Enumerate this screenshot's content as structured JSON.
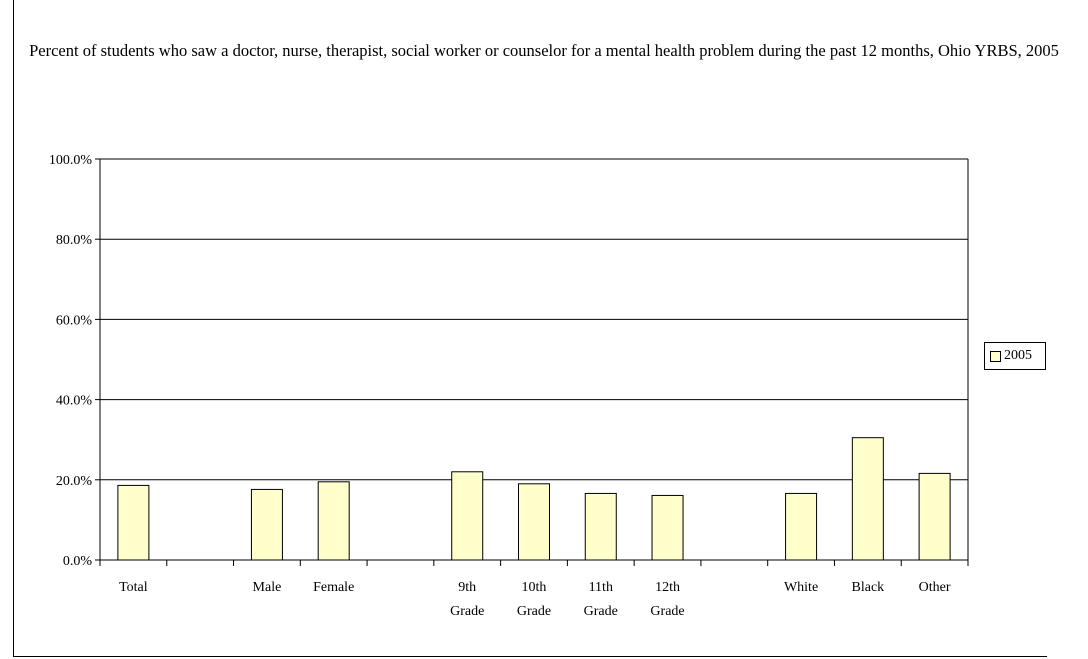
{
  "chart_data": {
    "type": "bar",
    "title": "Percent of students who saw a doctor, nurse, therapist, social worker or counselor for a mental health problem during the past 12 months, Ohio YRBS, 2005",
    "categories": [
      [
        "Total"
      ],
      [],
      [
        "Male"
      ],
      [
        "Female"
      ],
      [],
      [
        "9th",
        "Grade"
      ],
      [
        "10th",
        "Grade"
      ],
      [
        "11th",
        "Grade"
      ],
      [
        "12th",
        "Grade"
      ],
      [],
      [
        "White"
      ],
      [
        "Black"
      ],
      [
        "Other"
      ]
    ],
    "series": [
      {
        "name": "2005",
        "values": [
          18.6,
          null,
          17.6,
          19.5,
          null,
          22.0,
          19.0,
          16.6,
          16.1,
          null,
          16.6,
          30.5,
          21.6
        ]
      }
    ],
    "ylim": [
      0,
      100
    ],
    "yticks": [
      "0.0%",
      "20.0%",
      "40.0%",
      "60.0%",
      "80.0%",
      "100.0%"
    ],
    "ytick_values": [
      0,
      20,
      40,
      60,
      80,
      100
    ],
    "grid": true,
    "legend_position": "right",
    "bar_color": "#ffffcc",
    "bar_edge_color": "#000000"
  }
}
